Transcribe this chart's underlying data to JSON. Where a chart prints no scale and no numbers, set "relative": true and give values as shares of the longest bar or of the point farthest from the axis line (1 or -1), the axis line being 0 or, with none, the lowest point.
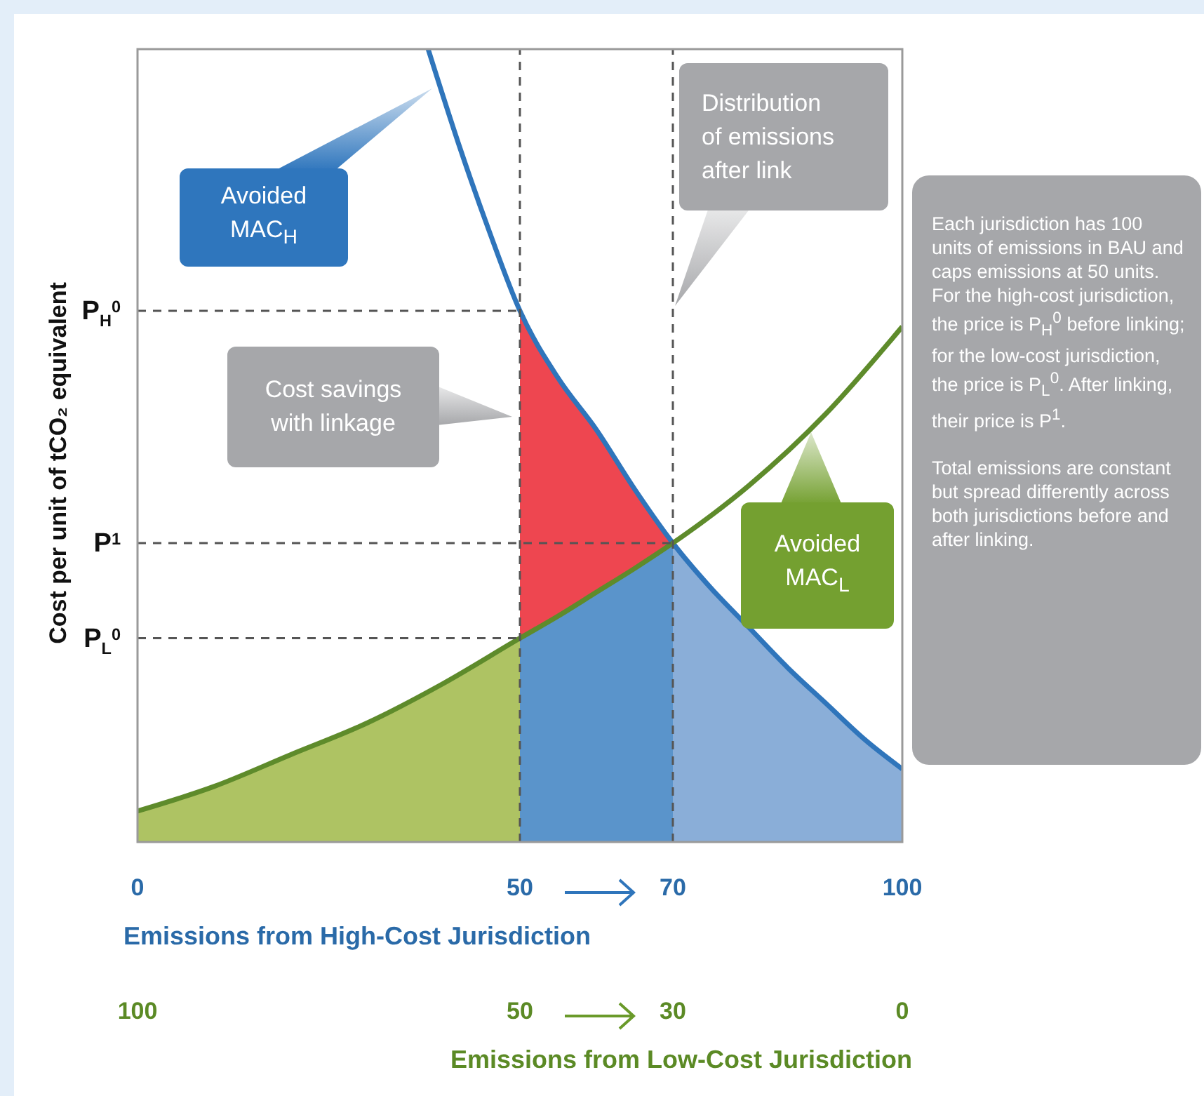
{
  "chart_data": {
    "type": "line",
    "relative": true,
    "xlabel": "Emissions from High-Cost Jurisdiction",
    "ylabel": "Cost per unit of tCO₂ equivalent",
    "x2label": "Emissions from Low-Cost Jurisdiction",
    "xlim": [
      0,
      100
    ],
    "xticks": [
      0,
      50,
      70,
      100
    ],
    "x2lim": [
      100,
      0
    ],
    "x2ticks": [
      100,
      50,
      30,
      0
    ],
    "series": [
      {
        "type": "area",
        "color": "#ee4650",
        "x": [
          50,
          55,
          60,
          65,
          70
        ],
        "values": [
          0.67,
          0.585,
          0.52,
          0.445,
          0.377
        ]
      },
      {
        "type": "area",
        "color": "#5a94cb",
        "x": [
          50,
          55,
          60,
          65,
          70
        ],
        "values": [
          0.257,
          0.285,
          0.315,
          0.345,
          0.377
        ]
      },
      {
        "type": "area",
        "color": "#aec363",
        "x": [
          0,
          10,
          20,
          30,
          40,
          50
        ],
        "values": [
          0.039,
          0.07,
          0.11,
          0.15,
          0.2,
          0.257
        ]
      },
      {
        "type": "area",
        "color": "#8aaed8",
        "x": [
          70,
          75,
          80,
          85,
          90,
          95,
          100
        ],
        "values": [
          0.377,
          0.32,
          0.27,
          0.22,
          0.175,
          0.13,
          0.092
        ]
      },
      {
        "color": "#2f75bb",
        "x": [
          38,
          42,
          46,
          50,
          55,
          60,
          65,
          70,
          75,
          80,
          85,
          90,
          95,
          100
        ],
        "values": [
          1.0,
          0.88,
          0.77,
          0.67,
          0.585,
          0.52,
          0.445,
          0.377,
          0.32,
          0.27,
          0.22,
          0.175,
          0.13,
          0.092
        ]
      },
      {
        "color": "#5e8b2b",
        "x": [
          0,
          10,
          20,
          30,
          40,
          50,
          55,
          60,
          65,
          70,
          80,
          90,
          100
        ],
        "values": [
          0.039,
          0.07,
          0.11,
          0.15,
          0.2,
          0.257,
          0.285,
          0.315,
          0.345,
          0.377,
          0.45,
          0.54,
          0.65
        ]
      }
    ],
    "ref_lines": [
      {
        "axis": "y",
        "value": 0.67,
        "label": "P$_{H}$$^{0}$",
        "color": "#555555",
        "line_style": "dashed"
      },
      {
        "axis": "y",
        "value": 0.377,
        "label": "P$^{1}$",
        "color": "#555555",
        "line_style": "dashed"
      },
      {
        "axis": "y",
        "value": 0.257,
        "label": "P$_{L}$$^{0}$",
        "color": "#555555",
        "line_style": "dashed"
      },
      {
        "axis": "x",
        "value": 50,
        "color": "#555555",
        "line_style": "dashed"
      },
      {
        "axis": "x",
        "value": 70,
        "color": "#555555",
        "line_style": "dashed"
      }
    ],
    "annotations": [
      "Avoided MAC$_{H}$",
      "Distribution of emissions after link",
      "Cost savings with linkage",
      "Avoided MAC$_{L}$",
      "Each jurisdiction has 100 units of emissions in BAU and caps emissions at 50 units. For the high-cost jurisdiction, the price is P$_{H}$$^{0}$ before linking; for the low-cost jurisdiction, the price is P$_{L}$$^{0}$. After linking, their price is P$^{1}$.",
      "Total emissions are constant but spread differently across both jurisdictions before and after linking."
    ]
  }
}
